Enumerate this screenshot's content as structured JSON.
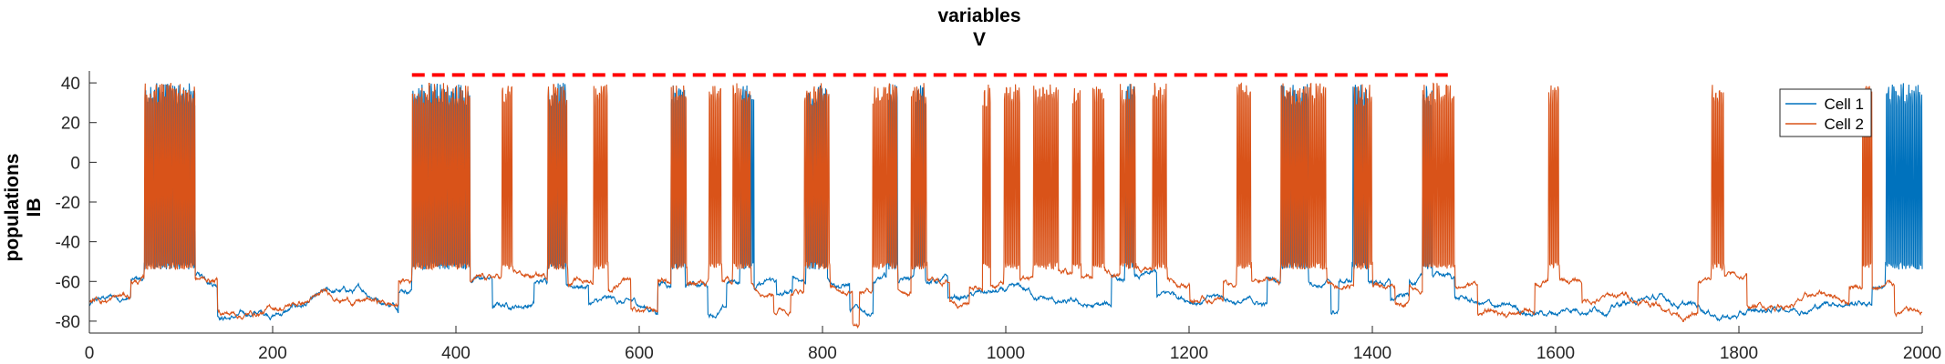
{
  "chart_data": {
    "type": "line",
    "title_lines": [
      "variables",
      "V"
    ],
    "ylabel_lines": [
      "populations",
      "IB"
    ],
    "xlabel": "",
    "xlim": [
      0,
      2000
    ],
    "ylim": [
      -86,
      46
    ],
    "x_ticks": [
      0,
      200,
      400,
      600,
      800,
      1000,
      1200,
      1400,
      1600,
      1800,
      2000
    ],
    "y_ticks": [
      -80,
      -60,
      -40,
      -20,
      0,
      20,
      40
    ],
    "grid": false,
    "legend_position": "top-right",
    "resting_potential": -80,
    "series": [
      {
        "name": "Cell 1",
        "color": "#0072BD",
        "bursts": [
          [
            60,
            115
          ],
          [
            352,
            415
          ],
          [
            500,
            520
          ],
          [
            635,
            650
          ],
          [
            710,
            725
          ],
          [
            782,
            805
          ],
          [
            870,
            882
          ],
          [
            900,
            912
          ],
          [
            1130,
            1140
          ],
          [
            1300,
            1330
          ],
          [
            1378,
            1395
          ],
          [
            1455,
            1465
          ],
          [
            1960,
            2000
          ]
        ]
      },
      {
        "name": "Cell 2",
        "color": "#D95319",
        "bursts": [
          [
            60,
            115
          ],
          [
            352,
            415
          ],
          [
            450,
            462
          ],
          [
            500,
            522
          ],
          [
            550,
            566
          ],
          [
            635,
            652
          ],
          [
            676,
            690
          ],
          [
            702,
            722
          ],
          [
            780,
            808
          ],
          [
            855,
            882
          ],
          [
            897,
            914
          ],
          [
            975,
            983
          ],
          [
            998,
            1015
          ],
          [
            1030,
            1057
          ],
          [
            1073,
            1082
          ],
          [
            1095,
            1108
          ],
          [
            1125,
            1142
          ],
          [
            1160,
            1176
          ],
          [
            1252,
            1268
          ],
          [
            1300,
            1350
          ],
          [
            1380,
            1400
          ],
          [
            1455,
            1490
          ],
          [
            1592,
            1604
          ],
          [
            1770,
            1784
          ],
          [
            1935,
            1945
          ]
        ]
      }
    ],
    "annotation": {
      "style": "dashed",
      "color": "#ff0000",
      "y": 44,
      "x_range": [
        352,
        1490
      ]
    }
  }
}
